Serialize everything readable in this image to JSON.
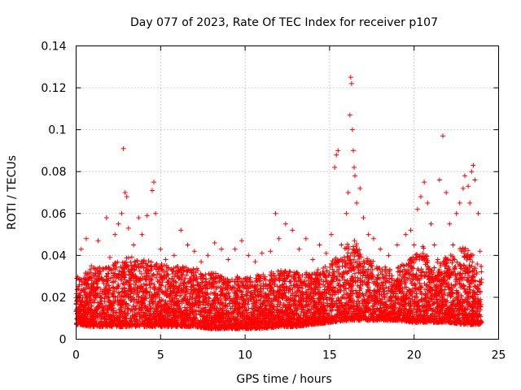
{
  "chart_data": {
    "type": "scatter",
    "title": "Day 077 of 2023, Rate Of TEC Index for receiver p107",
    "xlabel": "GPS time / hours",
    "ylabel": "ROTI / TECUs",
    "xlim": [
      0,
      25
    ],
    "ylim": [
      0,
      0.14
    ],
    "xticks": [
      0,
      5,
      10,
      15,
      20,
      25
    ],
    "yticks": [
      0,
      0.02,
      0.04,
      0.06,
      0.08,
      0.1,
      0.12,
      0.14
    ],
    "xtick_labels": [
      "0",
      "5",
      "10",
      "15",
      "20",
      "25"
    ],
    "ytick_labels": [
      "0",
      "0.02",
      "0.04",
      "0.06",
      "0.08",
      "0.1",
      "0.12",
      "0.14"
    ],
    "grid": true,
    "marker": "+",
    "color": "#ff0000",
    "series": [
      {
        "name": "ROTI",
        "x": [
          0.2,
          0.3,
          0.6,
          0.9,
          1.3,
          1.8,
          2.0,
          2.3,
          2.5,
          2.7,
          2.8,
          2.9,
          3.0,
          3.1,
          3.4,
          3.7,
          3.9,
          4.2,
          4.5,
          4.6,
          4.7,
          5.0,
          5.3,
          5.8,
          6.2,
          6.6,
          7.0,
          7.4,
          7.8,
          8.2,
          8.6,
          9.0,
          9.4,
          9.8,
          10.2,
          10.6,
          11.0,
          11.5,
          11.8,
          12.0,
          12.4,
          12.8,
          13.2,
          13.6,
          14.0,
          14.4,
          14.8,
          15.1,
          15.3,
          15.4,
          15.5,
          15.7,
          15.9,
          16.0,
          16.1,
          16.2,
          16.25,
          16.3,
          16.35,
          16.4,
          16.45,
          16.5,
          16.6,
          16.8,
          17.0,
          17.3,
          17.6,
          18.0,
          18.5,
          19.0,
          19.5,
          19.8,
          20.0,
          20.2,
          20.4,
          20.6,
          20.8,
          21.0,
          21.2,
          21.4,
          21.5,
          21.7,
          21.9,
          22.1,
          22.3,
          22.5,
          22.7,
          22.9,
          23.0,
          23.2,
          23.3,
          23.4,
          23.5,
          23.6,
          23.8,
          23.9
        ],
        "y": [
          0.026,
          0.043,
          0.048,
          0.035,
          0.047,
          0.058,
          0.039,
          0.05,
          0.055,
          0.06,
          0.091,
          0.07,
          0.068,
          0.053,
          0.045,
          0.058,
          0.05,
          0.059,
          0.071,
          0.075,
          0.06,
          0.043,
          0.038,
          0.04,
          0.052,
          0.045,
          0.042,
          0.037,
          0.04,
          0.046,
          0.043,
          0.038,
          0.043,
          0.047,
          0.04,
          0.037,
          0.041,
          0.042,
          0.06,
          0.048,
          0.055,
          0.052,
          0.043,
          0.048,
          0.038,
          0.045,
          0.041,
          0.05,
          0.082,
          0.088,
          0.09,
          0.045,
          0.035,
          0.06,
          0.07,
          0.107,
          0.125,
          0.122,
          0.1,
          0.09,
          0.082,
          0.078,
          0.065,
          0.072,
          0.058,
          0.05,
          0.048,
          0.043,
          0.04,
          0.045,
          0.05,
          0.052,
          0.045,
          0.062,
          0.068,
          0.075,
          0.065,
          0.055,
          0.045,
          0.038,
          0.076,
          0.097,
          0.07,
          0.055,
          0.045,
          0.06,
          0.065,
          0.072,
          0.078,
          0.073,
          0.065,
          0.08,
          0.083,
          0.076,
          0.06,
          0.042
        ]
      }
    ],
    "band": {
      "x": [
        0,
        1,
        2,
        3,
        4,
        5,
        6,
        7,
        8,
        9,
        10,
        11,
        12,
        13,
        14,
        15,
        16,
        16.5,
        17,
        18,
        19,
        20,
        20.5,
        21,
        22,
        23,
        24
      ],
      "low": [
        0.007,
        0.006,
        0.006,
        0.006,
        0.006,
        0.006,
        0.006,
        0.006,
        0.005,
        0.005,
        0.005,
        0.005,
        0.006,
        0.006,
        0.007,
        0.008,
        0.009,
        0.009,
        0.009,
        0.009,
        0.009,
        0.008,
        0.008,
        0.008,
        0.008,
        0.007,
        0.007
      ],
      "high": [
        0.03,
        0.034,
        0.036,
        0.04,
        0.038,
        0.036,
        0.035,
        0.034,
        0.032,
        0.03,
        0.03,
        0.031,
        0.033,
        0.032,
        0.032,
        0.036,
        0.045,
        0.048,
        0.04,
        0.035,
        0.034,
        0.04,
        0.045,
        0.035,
        0.04,
        0.045,
        0.035
      ]
    }
  }
}
